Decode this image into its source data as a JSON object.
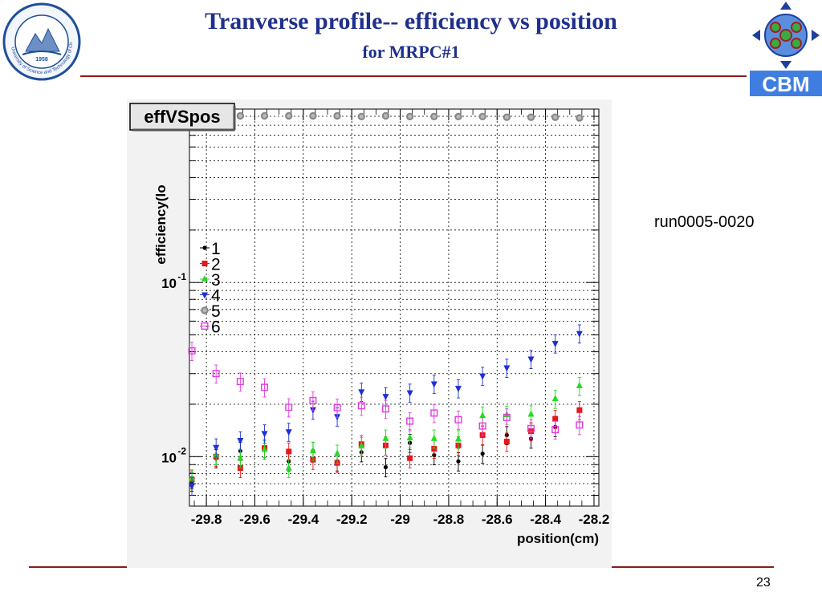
{
  "slide": {
    "title": "Tranverse profile-- efficiency vs position",
    "subtitle": "for MRPC#1",
    "run_label": "run0005-0020",
    "page_number": "23",
    "left_logo_text": "University of Science and Technology of China",
    "left_logo_year": "1958",
    "right_logo_text": "CBM"
  },
  "chart_data": {
    "type": "scatter",
    "title": "effVSpos",
    "xlabel": "position(cm)",
    "ylabel": "efficiency(lo",
    "xlim": [
      -29.87,
      -28.18
    ],
    "ylim": [
      0.0052,
      0.99
    ],
    "yscale": "log",
    "grid": true,
    "legend_position": "left-middle",
    "x_ticks": [
      -29.8,
      -29.6,
      -29.4,
      -29.2,
      -29,
      -28.8,
      -28.6,
      -28.4,
      -28.2
    ],
    "x_tick_labels": [
      "-29.8",
      "-29.6",
      "-29.4",
      "-29.2",
      "-29",
      "-28.8",
      "-28.6",
      "-28.4",
      "-28.2"
    ],
    "y_ticks": [
      0.01,
      0.1
    ],
    "y_tick_labels": [
      {
        "base": "10",
        "exp": "-2"
      },
      {
        "base": "10",
        "exp": "-1"
      }
    ],
    "x": [
      -29.86,
      -29.76,
      -29.66,
      -29.56,
      -29.46,
      -29.36,
      -29.26,
      -29.16,
      -29.06,
      -28.96,
      -28.86,
      -28.76,
      -28.66,
      -28.56,
      -28.46,
      -28.36,
      -28.26
    ],
    "series": [
      {
        "name": "1",
        "color": "#000000",
        "marker": "circle-filled",
        "values": [
          0.0072,
          0.0098,
          0.0108,
          0.011,
          0.0094,
          0.0108,
          0.0094,
          0.0106,
          0.0087,
          0.012,
          0.0102,
          0.0094,
          0.0104,
          0.0133,
          0.0127,
          0.0148,
          null
        ]
      },
      {
        "name": "2",
        "color": "#e8161b",
        "marker": "square-filled",
        "values": [
          0.0074,
          0.01,
          0.0086,
          0.0112,
          0.0107,
          0.0096,
          0.0092,
          0.0118,
          0.0116,
          0.0098,
          0.0111,
          0.0116,
          0.0133,
          0.0122,
          0.014,
          0.0165,
          0.0185
        ]
      },
      {
        "name": "3",
        "color": "#22dd22",
        "marker": "triangle-up",
        "values": [
          0.0075,
          0.0102,
          0.0098,
          0.011,
          0.0086,
          0.0108,
          0.0104,
          0.0115,
          0.0127,
          0.0128,
          0.0127,
          0.0126,
          0.0172,
          0.0174,
          0.0175,
          0.0215,
          0.0255
        ]
      },
      {
        "name": "4",
        "color": "#1d2fd6",
        "marker": "triangle-down",
        "values": [
          0.0068,
          0.0113,
          0.0124,
          0.0136,
          0.0139,
          0.0186,
          0.017,
          0.0236,
          0.0222,
          0.0233,
          0.0262,
          0.0247,
          0.0291,
          0.0324,
          0.0364,
          0.0447,
          0.051
        ]
      },
      {
        "name": "5",
        "color": "#888888",
        "marker": "circle-gray",
        "values": [
          null,
          null,
          0.905,
          0.905,
          0.905,
          0.905,
          0.905,
          0.897,
          0.905,
          0.897,
          0.897,
          0.897,
          0.897,
          0.889,
          0.889,
          0.889,
          0.881
        ]
      },
      {
        "name": "6",
        "color": "#e23be2",
        "marker": "square-open",
        "values": [
          0.0405,
          0.03,
          0.027,
          0.025,
          0.0192,
          0.021,
          0.0191,
          0.0196,
          0.0188,
          0.016,
          0.0178,
          0.0163,
          0.015,
          0.0168,
          0.0145,
          0.0143,
          0.0152
        ]
      }
    ]
  }
}
